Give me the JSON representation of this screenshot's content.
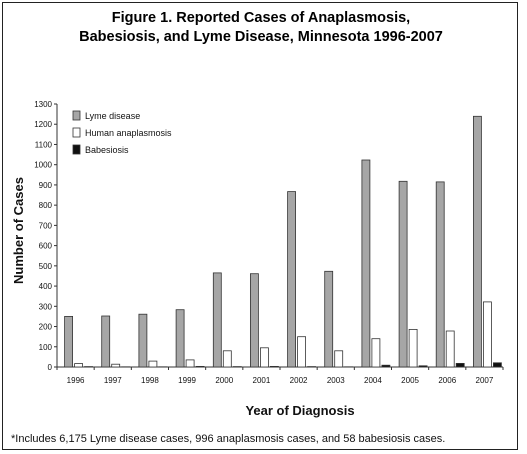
{
  "title": "Figure 1. Reported Cases of Anaplasmosis,\nBabesiosis, and Lyme Disease, Minnesota 1996-2007",
  "footnote": "*Includes 6,175 Lyme disease cases, 996 anaplasmosis cases, and 58 babesiosis cases.",
  "colors": {
    "lyme": "#a6a6a6",
    "anaplasmosis": "#ffffff",
    "babesiosis": "#111111"
  },
  "chart_data": {
    "type": "bar",
    "xlabel": "Year of Diagnosis",
    "ylabel": "Number of Cases",
    "ylim": [
      0,
      1300
    ],
    "yticks": [
      0,
      100,
      200,
      300,
      400,
      500,
      600,
      700,
      800,
      900,
      1000,
      1100,
      1200,
      1300
    ],
    "categories": [
      "1996",
      "1997",
      "1998",
      "1999",
      "2000",
      "2001",
      "2002",
      "2003",
      "2004",
      "2005",
      "2006",
      "2007"
    ],
    "legend_position": "top-left",
    "grid": false,
    "series": [
      {
        "name": "Lyme disease",
        "color": "#a6a6a6",
        "values": [
          250,
          252,
          261,
          283,
          465,
          461,
          867,
          473,
          1023,
          918,
          915,
          1239
        ]
      },
      {
        "name": "Human anaplasmosis",
        "color": "#ffffff",
        "values": [
          17,
          14,
          29,
          35,
          80,
          95,
          150,
          80,
          140,
          186,
          178,
          322
        ]
      },
      {
        "name": "Babesiosis",
        "color": "#111111",
        "values": [
          2,
          1,
          1,
          3,
          2,
          3,
          2,
          1,
          9,
          6,
          18,
          21
        ]
      }
    ]
  }
}
